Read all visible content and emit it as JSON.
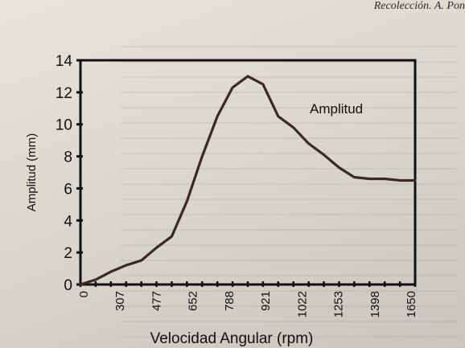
{
  "page": {
    "running_head": "Recolección. A. Pon"
  },
  "chart_data": {
    "type": "line",
    "title": "",
    "xlabel": "Velocidad Angular (rpm)",
    "ylabel": "Amplitud (mm)",
    "ylim": [
      0,
      14
    ],
    "yticks": [
      0,
      2,
      4,
      6,
      8,
      10,
      12,
      14
    ],
    "xtick_labels": [
      "0",
      "307",
      "477",
      "652",
      "788",
      "921",
      "1022",
      "1253",
      "1398",
      "1650"
    ],
    "x_index_range": [
      0,
      22
    ],
    "grid": false,
    "legend": "annotation inside plot near peak",
    "series": [
      {
        "name": "Amplitud",
        "color": "#3b2a22",
        "x_index": [
          0,
          1,
          2,
          3,
          4,
          5,
          6,
          7,
          8,
          9,
          10,
          11,
          12,
          13,
          14,
          15,
          16,
          17,
          18,
          19,
          20,
          21,
          22
        ],
        "values": [
          0,
          0.3,
          0.8,
          1.2,
          1.5,
          2.3,
          3.0,
          5.2,
          8.0,
          10.5,
          12.3,
          13.0,
          12.5,
          10.5,
          9.8,
          8.8,
          8.1,
          7.3,
          6.7,
          6.6,
          6.6,
          6.5,
          6.5
        ]
      }
    ]
  }
}
